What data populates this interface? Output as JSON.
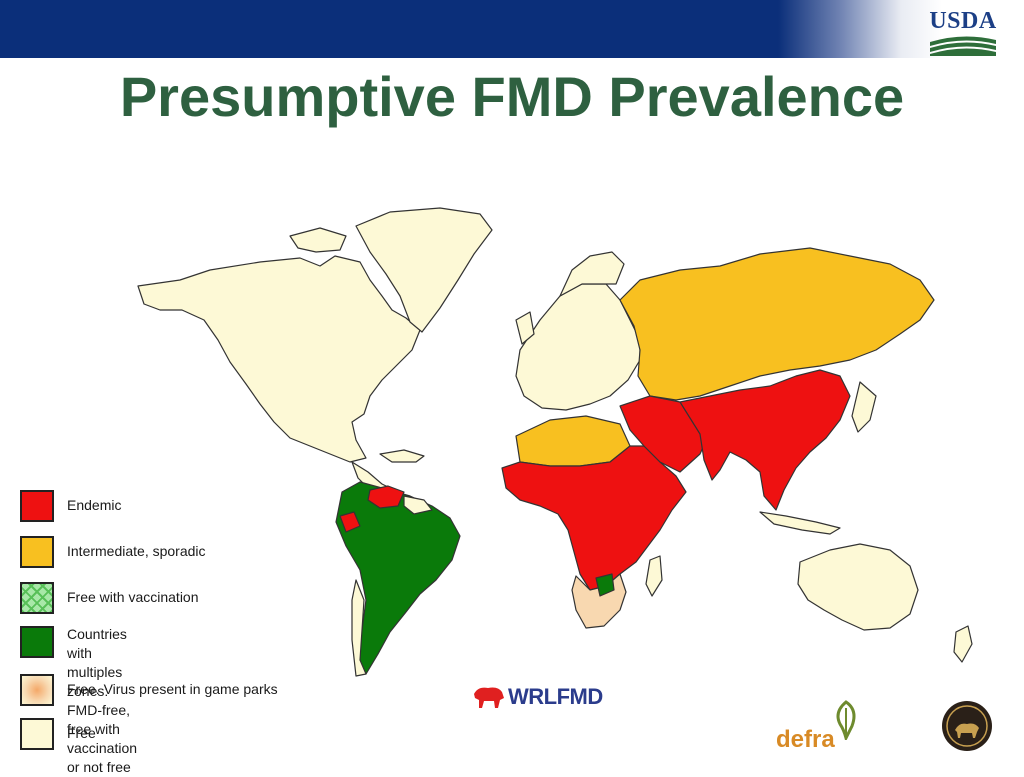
{
  "header": {
    "title": "Presumptive FMD Prevalence",
    "logo_text": "USDA"
  },
  "colors": {
    "endemic": "#ee1111",
    "intermediate": "#f8c020",
    "free_with_vaccination": "#a8e8a8",
    "multiple_zones": "#0a7a0a",
    "game_parks": "#f8d8b0",
    "free": "#fdf9d6",
    "title": "#2e6040",
    "band": "#0b2f7a"
  },
  "legend": [
    {
      "key": "endemic",
      "label": "Endemic"
    },
    {
      "key": "intermediate",
      "label": "Intermediate, sporadic"
    },
    {
      "key": "free_with_vaccination",
      "label": "Free with vaccination"
    },
    {
      "key": "multiple_zones",
      "label": "Countries with multiples zones:\nFMD-free, free with vaccination or not free"
    },
    {
      "key": "game_parks",
      "label": "Free. Virus present in game  parks"
    },
    {
      "key": "free",
      "label": "Free"
    }
  ],
  "logos": {
    "wrlfmd": "WRLFMD",
    "defra": "defra"
  }
}
